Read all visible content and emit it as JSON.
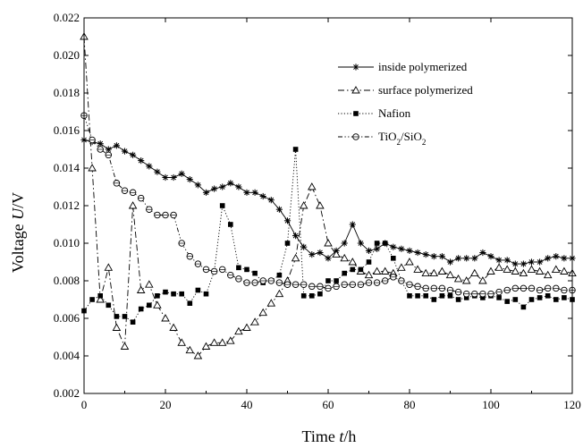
{
  "chart_data": {
    "type": "line",
    "xlabel_prefix": "Time ",
    "xlabel_var": "t",
    "xlabel_unit": "/h",
    "ylabel_prefix": "Voltage ",
    "ylabel_var": "U",
    "ylabel_unit": "/V",
    "xlim": [
      0,
      120
    ],
    "ylim": [
      0.002,
      0.022
    ],
    "xticks": [
      "0",
      "20",
      "40",
      "60",
      "80",
      "100",
      "120"
    ],
    "yticks": [
      "0.002",
      "0.004",
      "0.006",
      "0.008",
      "0.010",
      "0.012",
      "0.014",
      "0.016",
      "0.018",
      "0.020",
      "0.022"
    ],
    "grid": false,
    "legend_position": "top-right",
    "series": [
      {
        "name": "inside polymerized",
        "marker": "asterisk",
        "line": "solid",
        "x": [
          0,
          2,
          4,
          6,
          8,
          10,
          12,
          14,
          16,
          18,
          20,
          22,
          24,
          26,
          28,
          30,
          32,
          34,
          36,
          38,
          40,
          42,
          44,
          46,
          48,
          50,
          52,
          54,
          56,
          58,
          60,
          62,
          64,
          66,
          68,
          70,
          72,
          74,
          76,
          78,
          80,
          82,
          84,
          86,
          88,
          90,
          92,
          94,
          96,
          98,
          100,
          102,
          104,
          106,
          108,
          110,
          112,
          114,
          116,
          118,
          120
        ],
        "y": [
          0.0155,
          0.0154,
          0.0153,
          0.015,
          0.0152,
          0.0149,
          0.0147,
          0.0144,
          0.0141,
          0.0138,
          0.0135,
          0.0135,
          0.0137,
          0.0134,
          0.0131,
          0.0127,
          0.0129,
          0.013,
          0.0132,
          0.013,
          0.0127,
          0.0127,
          0.0125,
          0.0123,
          0.0118,
          0.0112,
          0.0104,
          0.0098,
          0.0094,
          0.0095,
          0.0092,
          0.0096,
          0.01,
          0.011,
          0.01,
          0.0096,
          0.0097,
          0.01,
          0.0098,
          0.0097,
          0.0096,
          0.0095,
          0.0094,
          0.0093,
          0.0093,
          0.009,
          0.0092,
          0.0092,
          0.0092,
          0.0095,
          0.0093,
          0.0091,
          0.0091,
          0.0089,
          0.0089,
          0.009,
          0.009,
          0.0092,
          0.0093,
          0.0092,
          0.0092
        ]
      },
      {
        "name": "surface polymerized",
        "marker": "triangle",
        "line": "dashdot",
        "x": [
          0,
          2,
          4,
          6,
          8,
          10,
          12,
          14,
          16,
          18,
          20,
          22,
          24,
          26,
          28,
          30,
          32,
          34,
          36,
          38,
          40,
          42,
          44,
          46,
          48,
          50,
          52,
          54,
          56,
          58,
          60,
          62,
          64,
          66,
          68,
          70,
          72,
          74,
          76,
          78,
          80,
          82,
          84,
          86,
          88,
          90,
          92,
          94,
          96,
          98,
          100,
          102,
          104,
          106,
          108,
          110,
          112,
          114,
          116,
          118,
          120
        ],
        "y": [
          0.021,
          0.014,
          0.007,
          0.0087,
          0.0055,
          0.0045,
          0.012,
          0.0075,
          0.0078,
          0.0067,
          0.006,
          0.0055,
          0.0047,
          0.0043,
          0.004,
          0.0045,
          0.0047,
          0.0047,
          0.0048,
          0.0053,
          0.0055,
          0.0058,
          0.0063,
          0.0068,
          0.0073,
          0.008,
          0.0092,
          0.012,
          0.013,
          0.012,
          0.01,
          0.0094,
          0.0092,
          0.009,
          0.0085,
          0.0083,
          0.0085,
          0.0085,
          0.0084,
          0.0087,
          0.009,
          0.0086,
          0.0084,
          0.0084,
          0.0085,
          0.0083,
          0.0081,
          0.008,
          0.0084,
          0.008,
          0.0085,
          0.0087,
          0.0086,
          0.0085,
          0.0084,
          0.0086,
          0.0085,
          0.0083,
          0.0086,
          0.0085,
          0.0084
        ]
      },
      {
        "name": "Nafion",
        "marker": "square",
        "line": "dotted",
        "x": [
          0,
          2,
          4,
          6,
          8,
          10,
          12,
          14,
          16,
          18,
          20,
          22,
          24,
          26,
          28,
          30,
          32,
          34,
          36,
          38,
          40,
          42,
          44,
          46,
          48,
          50,
          52,
          54,
          56,
          58,
          60,
          62,
          64,
          66,
          68,
          70,
          72,
          74,
          76,
          78,
          80,
          82,
          84,
          86,
          88,
          90,
          92,
          94,
          96,
          98,
          100,
          102,
          104,
          106,
          108,
          110,
          112,
          114,
          116,
          118,
          120
        ],
        "y": [
          0.0064,
          0.007,
          0.0072,
          0.0067,
          0.0061,
          0.0061,
          0.0058,
          0.0065,
          0.0067,
          0.0072,
          0.0074,
          0.0073,
          0.0073,
          0.0068,
          0.0075,
          0.0073,
          0.0085,
          0.012,
          0.011,
          0.0087,
          0.0086,
          0.0084,
          0.0079,
          0.008,
          0.0083,
          0.01,
          0.015,
          0.0072,
          0.0072,
          0.0073,
          0.008,
          0.008,
          0.0084,
          0.0086,
          0.0086,
          0.009,
          0.01,
          0.01,
          0.0092,
          0.008,
          0.0072,
          0.0072,
          0.0072,
          0.007,
          0.0072,
          0.0072,
          0.007,
          0.0071,
          0.0072,
          0.0071,
          0.0072,
          0.0071,
          0.0069,
          0.007,
          0.0066,
          0.007,
          0.0071,
          0.0072,
          0.007,
          0.0071,
          0.007
        ]
      },
      {
        "name_main": "TiO",
        "name_sub1": "2",
        "name_mid": "/SiO",
        "name_sub2": "2",
        "marker": "circle",
        "line": "dashdotdot",
        "x": [
          0,
          2,
          4,
          6,
          8,
          10,
          12,
          14,
          16,
          18,
          20,
          22,
          24,
          26,
          28,
          30,
          32,
          34,
          36,
          38,
          40,
          42,
          44,
          46,
          48,
          50,
          52,
          54,
          56,
          58,
          60,
          62,
          64,
          66,
          68,
          70,
          72,
          74,
          76,
          78,
          80,
          82,
          84,
          86,
          88,
          90,
          92,
          94,
          96,
          98,
          100,
          102,
          104,
          106,
          108,
          110,
          112,
          114,
          116,
          118,
          120
        ],
        "y": [
          0.0168,
          0.0155,
          0.015,
          0.0147,
          0.0132,
          0.0128,
          0.0127,
          0.0124,
          0.0118,
          0.0115,
          0.0115,
          0.0115,
          0.01,
          0.0093,
          0.0089,
          0.0086,
          0.0085,
          0.0086,
          0.0083,
          0.0081,
          0.0079,
          0.0079,
          0.008,
          0.008,
          0.0079,
          0.0078,
          0.0078,
          0.0078,
          0.0077,
          0.0077,
          0.0076,
          0.0077,
          0.0078,
          0.0078,
          0.0078,
          0.0079,
          0.0079,
          0.008,
          0.0082,
          0.008,
          0.0078,
          0.0077,
          0.0076,
          0.0076,
          0.0076,
          0.0075,
          0.0074,
          0.0073,
          0.0073,
          0.0073,
          0.0073,
          0.0074,
          0.0075,
          0.0076,
          0.0076,
          0.0076,
          0.0075,
          0.0076,
          0.0076,
          0.0075,
          0.0075
        ]
      }
    ]
  }
}
